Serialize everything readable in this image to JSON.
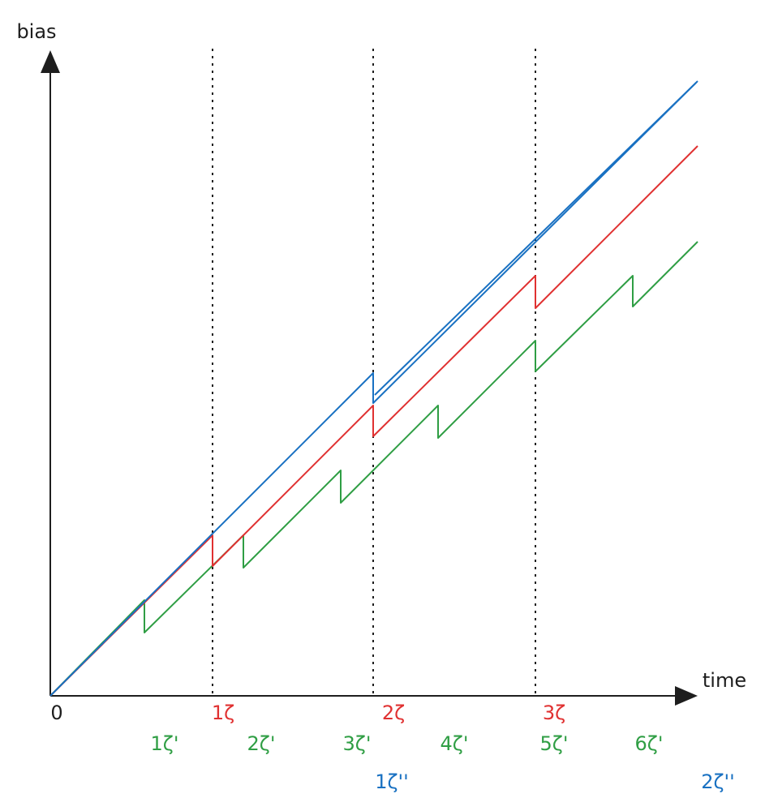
{
  "axes": {
    "y_label": "bias",
    "x_label": "time",
    "origin": "0"
  },
  "red_ticks": [
    "1ζ",
    "2ζ",
    "3ζ"
  ],
  "green_ticks": [
    "1ζ'",
    "2ζ'",
    "3ζ'",
    "4ζ'",
    "5ζ'",
    "6ζ'"
  ],
  "blue_ticks": [
    "1ζ''",
    "2ζ''"
  ]
}
